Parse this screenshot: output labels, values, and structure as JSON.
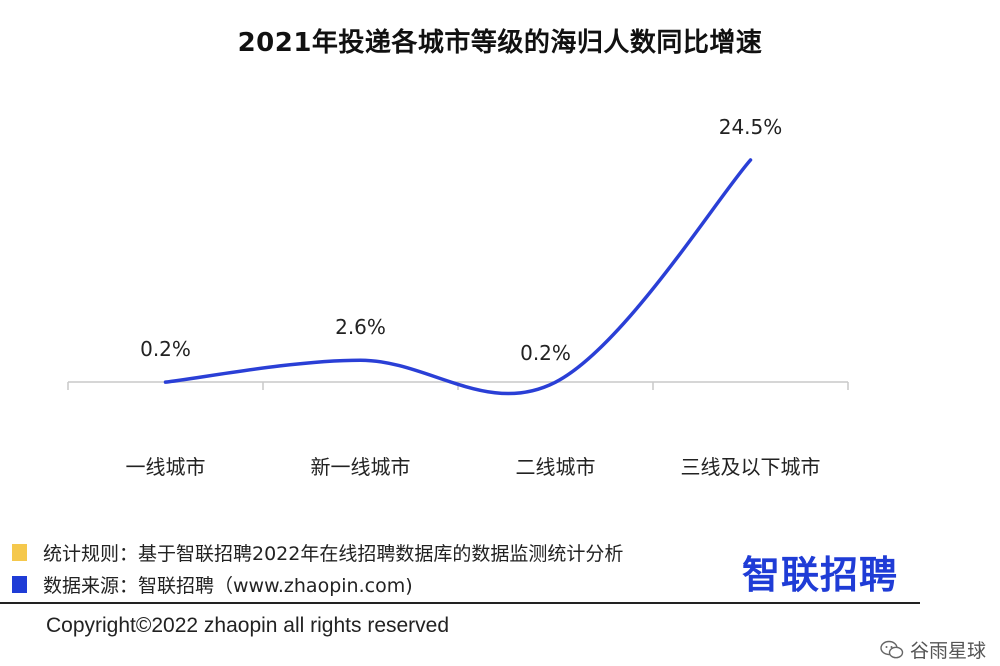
{
  "title": "2021年投递各城市等级的海归人数同比增速",
  "chart_data": {
    "type": "line",
    "title": "2021年投递各城市等级的海归人数同比增速",
    "categories": [
      "一线城市",
      "新一线城市",
      "二线城市",
      "三线及以下城市"
    ],
    "values": [
      0.2,
      2.6,
      0.2,
      24.5
    ],
    "data_labels": [
      "0.2%",
      "2.6%",
      "0.2%",
      "24.5%"
    ],
    "ylim": [
      -1,
      26
    ],
    "grid": false,
    "smooth": true,
    "line_color": "#2a3fd6"
  },
  "notes": [
    {
      "text": "统计规则：基于智联招聘2022年在线招聘数据库的数据监测统计分析",
      "color": "#f5c84c"
    },
    {
      "text": "数据来源：智联招聘（www.zhaopin.com)",
      "color": "#1f3cd6"
    }
  ],
  "brand": "智联招聘",
  "copyright": "Copyright©2022 zhaopin all rights reserved",
  "watermark": {
    "text": "谷雨星球",
    "icon": "wechat-icon"
  }
}
